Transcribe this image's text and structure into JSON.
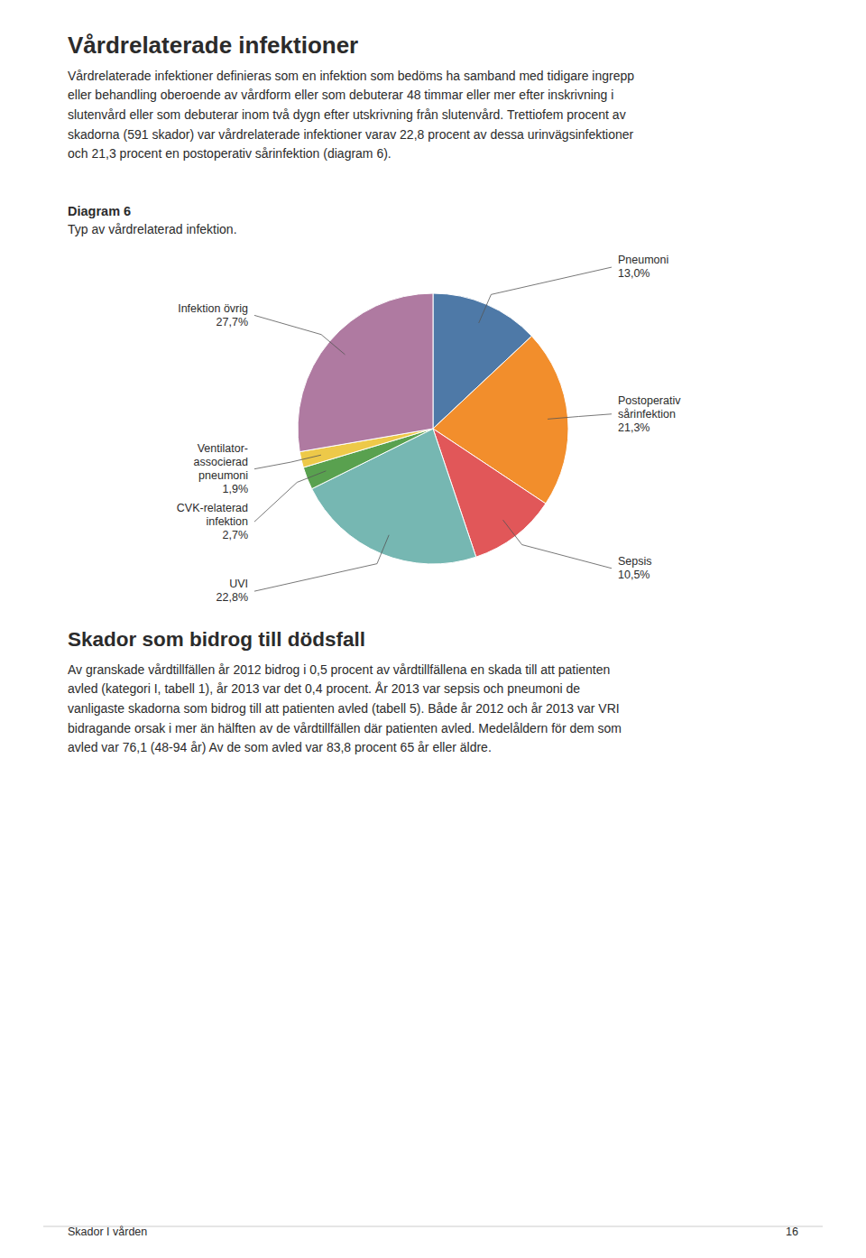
{
  "page_title": "Vårdrelaterade infektioner",
  "body_text": "Vårdrelaterade infektioner definieras som en infektion som bedöms ha samband med tidigare ingrepp\neller behandling oberoende av vårdform eller som debuterar 48 timmar eller mer efter inskrivning i\nslutenvård eller som debuterar inom två dygn efter utskrivning från slutenvård. Trettiofem procent av\nskadorna (591 skador) var vårdrelaterade infektioner varav 22,8 procent av dessa urinvägsinfektioner\noch 21,3 procent en postoperativ sårinfektion (diagram 6).",
  "section2_title": "Skador som bidrog till dödsfall",
  "section2_text": "Av granskade vårdtillfällen år 2012 bidrog i 0,5 procent av vårdtillfällena en skada till att patienten\navled (kategori I, tabell 1), år 2013 var det 0,4 procent.  År 2013 var sepsis och pneumoni de\nvanligaste skadorna som bidrog till att patienten avled (tabell 5). Både år 2012 och år 2013 var VRI\nbidragande orsak i mer än hälften av de vårdtillfällen där patienten avled. Medelåldern för dem som\navled var 76,1 (48-94 år) Av de som avled var 83,8 procent 65 år eller äldre.",
  "footer_left": "Skador I vården",
  "footer_right": "16",
  "chart_data": {
    "type": "pie",
    "title": "Diagram 6",
    "subtitle": "Typ av vårdrelaterad infektion.",
    "categories": [
      "Pneumoni",
      "Postoperativ\nsårinfektion",
      "Sepsis",
      "UVI",
      "CVK-relaterad\ninfektion",
      "Ventilator-\nassocierad\npneumoni",
      "Infektion övrig"
    ],
    "values": [
      13.0,
      21.3,
      10.5,
      22.8,
      2.7,
      1.9,
      27.7
    ],
    "value_labels": [
      "13,0%",
      "21,3%",
      "10,5%",
      "22,8%",
      "2,7%",
      "1,9%",
      "27,7%"
    ]
  }
}
